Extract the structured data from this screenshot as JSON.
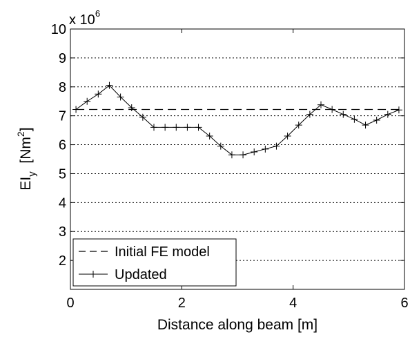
{
  "chart_data": {
    "type": "line",
    "xlabel": "Distance along beam  [m]",
    "ylabel": {
      "base": "EI",
      "subscript": "y",
      "unit_open": "  [Nm",
      "unit_sup": "2",
      "unit_close": "]"
    },
    "y_multiplier": {
      "base": "x 10",
      "exponent": "6"
    },
    "xlim": [
      0,
      6
    ],
    "ylim": [
      1,
      10
    ],
    "x_ticks": [
      0,
      2,
      4,
      6
    ],
    "x_tick_labels": [
      "0",
      "2",
      "4",
      "6"
    ],
    "y_ticks": [
      2,
      3,
      4,
      5,
      6,
      7,
      8,
      9,
      10
    ],
    "y_tick_labels": [
      "2",
      "3",
      "4",
      "5",
      "6",
      "7",
      "8",
      "9",
      "10"
    ],
    "grid": "horizontal dotted",
    "legend_position": "bottom-left",
    "series": [
      {
        "name": "Initial FE model",
        "style": "dashed",
        "color": "#000000",
        "x": [
          0.1,
          5.9
        ],
        "y": [
          7.22,
          7.22
        ]
      },
      {
        "name": "Updated",
        "style": "solid-plus-markers",
        "color": "#000000",
        "x": [
          0.1,
          0.3,
          0.5,
          0.7,
          0.9,
          1.1,
          1.3,
          1.5,
          1.7,
          1.9,
          2.1,
          2.3,
          2.5,
          2.7,
          2.9,
          3.1,
          3.3,
          3.5,
          3.7,
          3.9,
          4.1,
          4.3,
          4.5,
          4.7,
          4.9,
          5.1,
          5.3,
          5.5,
          5.7,
          5.9
        ],
        "y": [
          7.22,
          7.5,
          7.75,
          8.05,
          7.65,
          7.28,
          6.95,
          6.6,
          6.6,
          6.6,
          6.6,
          6.6,
          6.3,
          5.95,
          5.65,
          5.65,
          5.75,
          5.85,
          5.95,
          6.3,
          6.68,
          7.05,
          7.38,
          7.22,
          7.05,
          6.88,
          6.68,
          6.85,
          7.05,
          7.2
        ]
      }
    ]
  }
}
